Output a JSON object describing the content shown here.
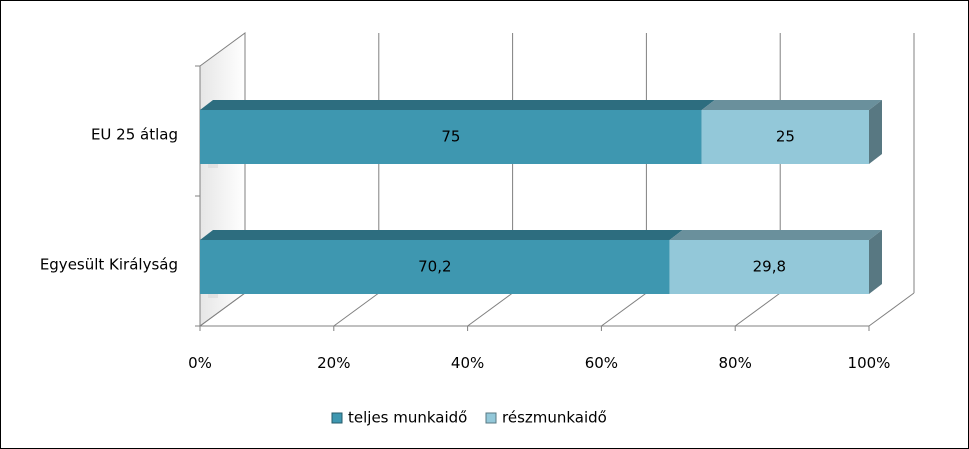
{
  "chart_data": {
    "type": "bar",
    "orientation": "horizontal",
    "stacked": "100%",
    "categories": [
      "EU 25 átlag",
      "Egyesült Királyság"
    ],
    "series": [
      {
        "name": "teljes munkaidő",
        "values": [
          75,
          70.2
        ],
        "labels": [
          "75",
          "70,2"
        ],
        "color": "#3e97b0"
      },
      {
        "name": "részmunkaidő",
        "values": [
          25,
          29.8
        ],
        "labels": [
          "25",
          "29,8"
        ],
        "color": "#93c8d9"
      }
    ],
    "x_ticks": [
      "0%",
      "20%",
      "40%",
      "60%",
      "80%",
      "100%"
    ],
    "xlim": [
      0,
      100
    ],
    "grid": true,
    "legend_position": "bottom"
  }
}
